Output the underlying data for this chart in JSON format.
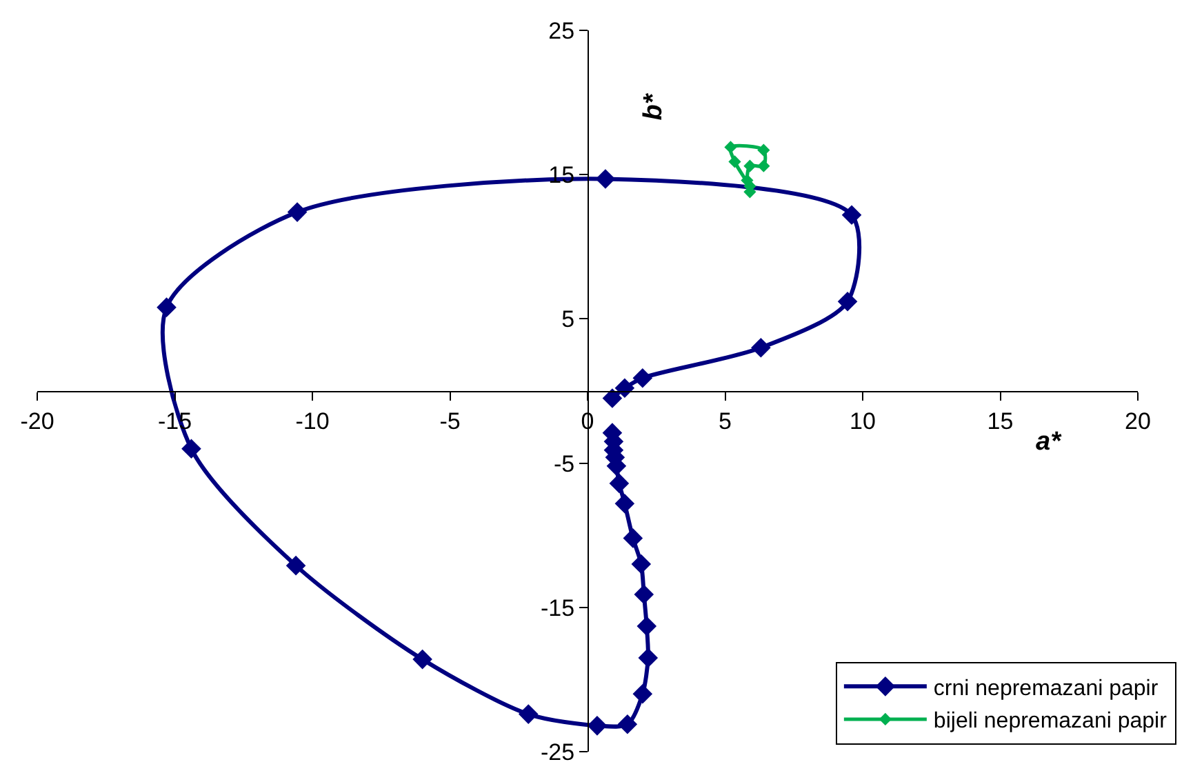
{
  "chart_data": {
    "type": "line",
    "xlabel": "a*",
    "ylabel": "b*",
    "xlim": [
      -20,
      20
    ],
    "xticks": [
      -20,
      -15,
      -10,
      -5,
      0,
      5,
      10,
      15,
      20
    ],
    "ylim": [
      -25,
      25
    ],
    "yticks": [
      -25,
      -15,
      -5,
      5,
      15,
      25
    ],
    "marker": "diamond",
    "line_style": "solid",
    "legend": "bottom right",
    "series": [
      {
        "name": "crni nepremazani papir",
        "color": "#000080",
        "x": [
          0.9,
          1.35,
          2.0,
          6.3,
          9.45,
          9.6,
          0.65,
          -10.55,
          -15.3,
          -14.4,
          -10.6,
          -6.0,
          -2.15,
          0.35,
          1.45,
          2.0,
          2.2,
          2.15,
          2.05,
          1.95,
          1.65,
          1.35,
          1.15,
          1.05,
          1.0,
          0.95,
          0.95,
          0.9
        ],
        "values": [
          -0.5,
          0.2,
          0.9,
          3.0,
          6.2,
          12.2,
          14.7,
          12.4,
          5.8,
          -4.0,
          -12.1,
          -18.6,
          -22.4,
          -23.2,
          -23.1,
          -21.0,
          -18.5,
          -16.3,
          -14.1,
          -12.0,
          -10.2,
          -7.8,
          -6.4,
          -5.2,
          -4.6,
          -4.1,
          -3.5,
          -2.9
        ]
      },
      {
        "name": "bijeli nepremazani papir",
        "color": "#00b050",
        "x": [
          5.9,
          5.8,
          5.9,
          6.4,
          6.4,
          5.2,
          5.35,
          5.9
        ],
        "values": [
          13.8,
          14.6,
          15.6,
          15.6,
          16.7,
          16.9,
          15.9,
          14.2
        ]
      }
    ]
  }
}
